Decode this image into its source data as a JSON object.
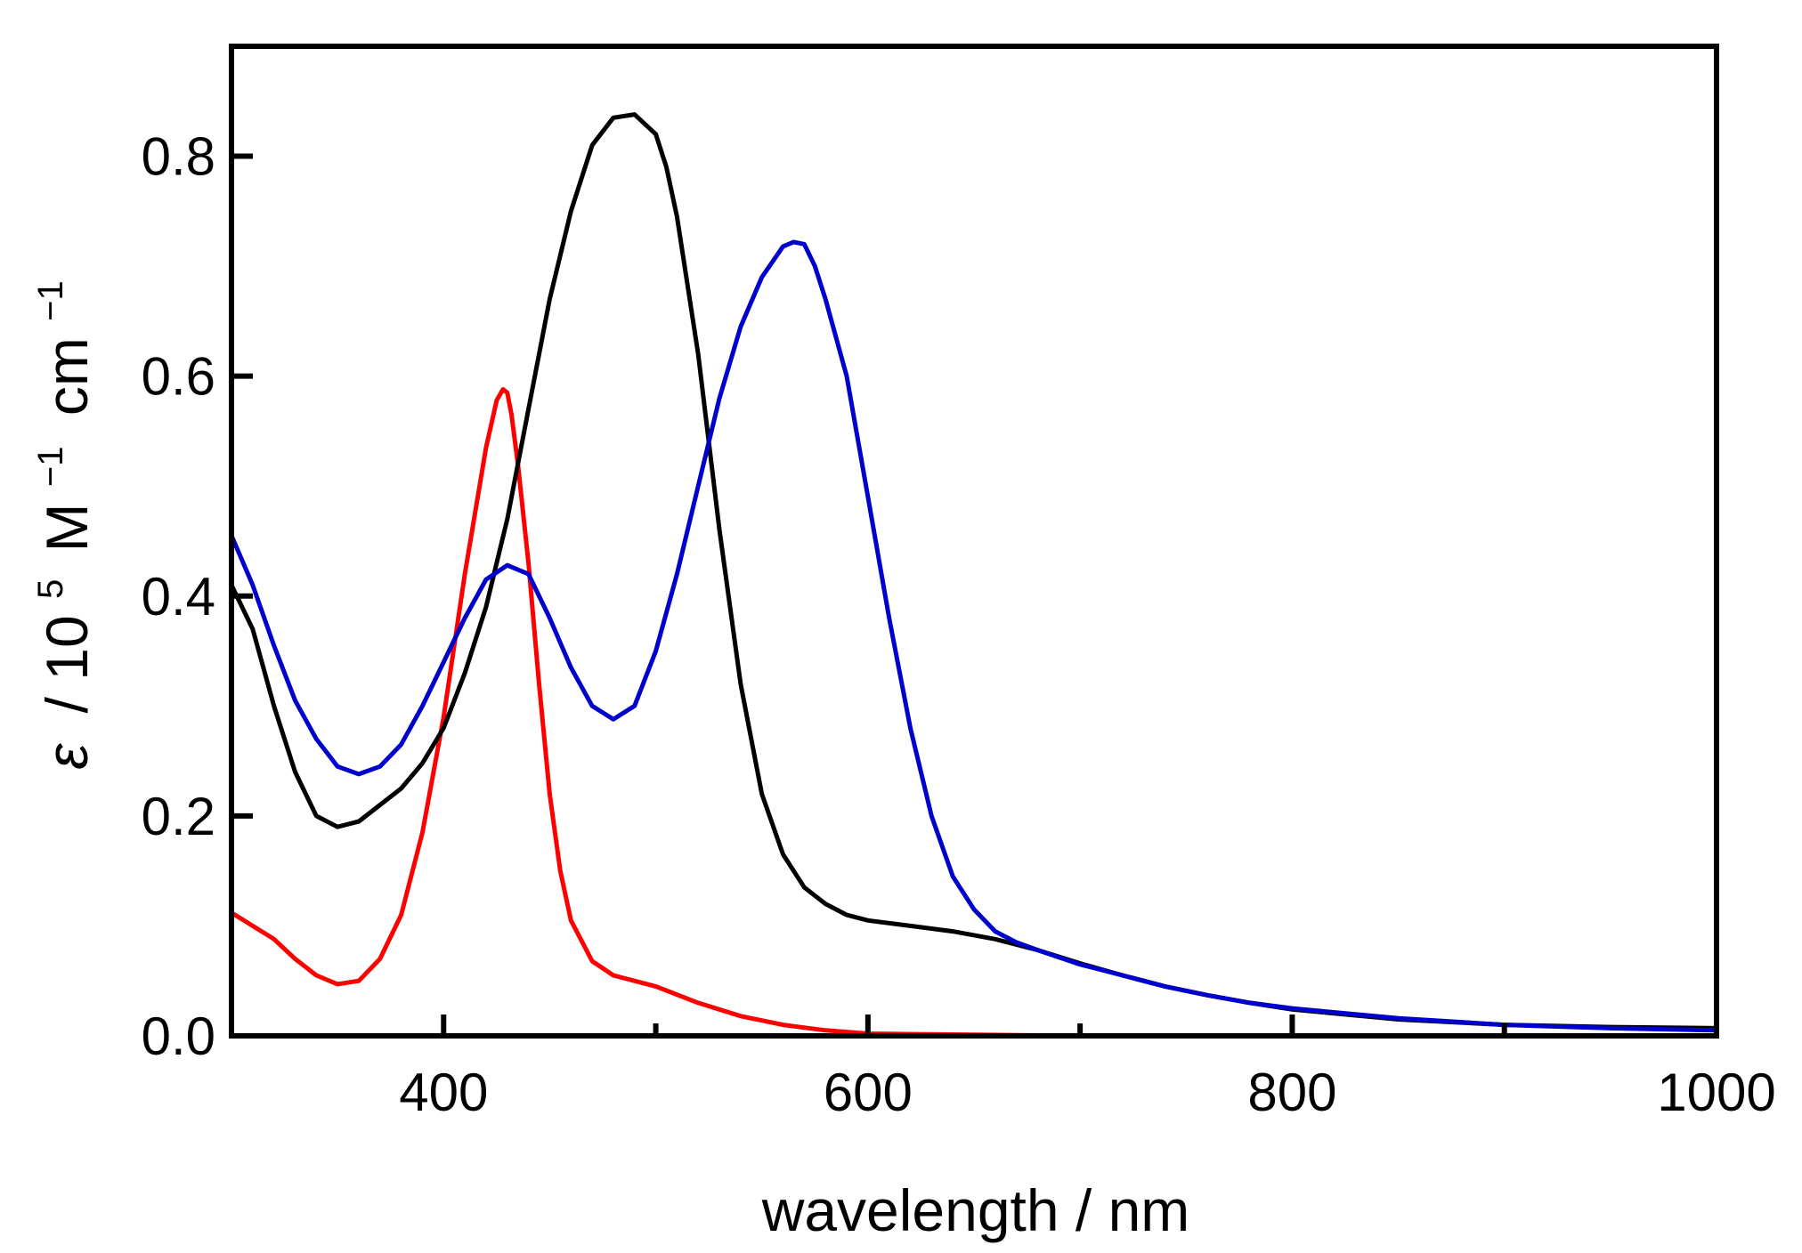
{
  "chart_data": {
    "type": "line",
    "title": "",
    "xlabel": "wavelength / nm",
    "ylabel": {
      "symbol": "ε",
      "prefix": "/ 10",
      "exp1": "5",
      "unit1": "M",
      "exp2": "−1",
      "unit2": "cm",
      "exp3": "−1"
    },
    "xlim": [
      300,
      1000
    ],
    "ylim": [
      0,
      0.9
    ],
    "xticks_major": [
      400,
      600,
      800,
      1000
    ],
    "xtick_labels": [
      "400",
      "600",
      "800",
      "1000"
    ],
    "xticks_minor": [
      500,
      700,
      900
    ],
    "yticks": [
      0.0,
      0.2,
      0.4,
      0.6,
      0.8
    ],
    "ytick_labels": [
      "0.0",
      "0.2",
      "0.4",
      "0.6",
      "0.8"
    ],
    "grid": false,
    "legend": "none",
    "series": [
      {
        "name": "red",
        "color": "#ff0000",
        "x": [
          300,
          310,
          320,
          330,
          340,
          350,
          360,
          370,
          380,
          390,
          400,
          410,
          420,
          425,
          428,
          430,
          432,
          435,
          440,
          445,
          450,
          455,
          460,
          470,
          480,
          500,
          520,
          540,
          560,
          580,
          600,
          650,
          700,
          800,
          900,
          1000
        ],
        "y": [
          0.112,
          0.1,
          0.088,
          0.07,
          0.055,
          0.047,
          0.05,
          0.07,
          0.11,
          0.185,
          0.29,
          0.42,
          0.535,
          0.578,
          0.588,
          0.585,
          0.565,
          0.52,
          0.43,
          0.32,
          0.22,
          0.15,
          0.105,
          0.068,
          0.055,
          0.045,
          0.03,
          0.018,
          0.01,
          0.005,
          0.002,
          0.001,
          0.0,
          0.0,
          0.0,
          0.0
        ]
      },
      {
        "name": "black",
        "color": "#000000",
        "x": [
          300,
          310,
          320,
          330,
          340,
          350,
          360,
          370,
          380,
          390,
          400,
          410,
          420,
          430,
          440,
          450,
          460,
          470,
          480,
          490,
          500,
          505,
          510,
          520,
          530,
          540,
          550,
          560,
          570,
          580,
          590,
          600,
          620,
          640,
          660,
          680,
          700,
          720,
          740,
          760,
          780,
          800,
          850,
          900,
          950,
          1000
        ],
        "y": [
          0.41,
          0.37,
          0.3,
          0.24,
          0.2,
          0.19,
          0.195,
          0.21,
          0.225,
          0.248,
          0.28,
          0.33,
          0.39,
          0.47,
          0.57,
          0.67,
          0.75,
          0.81,
          0.835,
          0.838,
          0.82,
          0.79,
          0.745,
          0.62,
          0.46,
          0.32,
          0.22,
          0.165,
          0.135,
          0.12,
          0.11,
          0.105,
          0.1,
          0.095,
          0.088,
          0.078,
          0.066,
          0.055,
          0.045,
          0.037,
          0.03,
          0.024,
          0.015,
          0.01,
          0.008,
          0.007
        ]
      },
      {
        "name": "blue",
        "color": "#0000cc",
        "x": [
          300,
          310,
          320,
          330,
          340,
          350,
          360,
          370,
          380,
          390,
          400,
          410,
          420,
          430,
          440,
          450,
          460,
          470,
          480,
          490,
          500,
          510,
          520,
          530,
          540,
          550,
          560,
          565,
          570,
          575,
          580,
          590,
          600,
          610,
          620,
          630,
          640,
          650,
          660,
          670,
          680,
          700,
          720,
          740,
          760,
          780,
          800,
          850,
          900,
          950,
          1000
        ],
        "y": [
          0.455,
          0.41,
          0.355,
          0.305,
          0.27,
          0.245,
          0.238,
          0.245,
          0.265,
          0.3,
          0.34,
          0.38,
          0.415,
          0.428,
          0.42,
          0.38,
          0.335,
          0.3,
          0.288,
          0.3,
          0.35,
          0.42,
          0.5,
          0.58,
          0.645,
          0.69,
          0.718,
          0.722,
          0.72,
          0.7,
          0.67,
          0.6,
          0.49,
          0.38,
          0.28,
          0.2,
          0.145,
          0.115,
          0.095,
          0.085,
          0.078,
          0.065,
          0.055,
          0.045,
          0.037,
          0.03,
          0.025,
          0.016,
          0.01,
          0.007,
          0.005
        ]
      }
    ]
  }
}
